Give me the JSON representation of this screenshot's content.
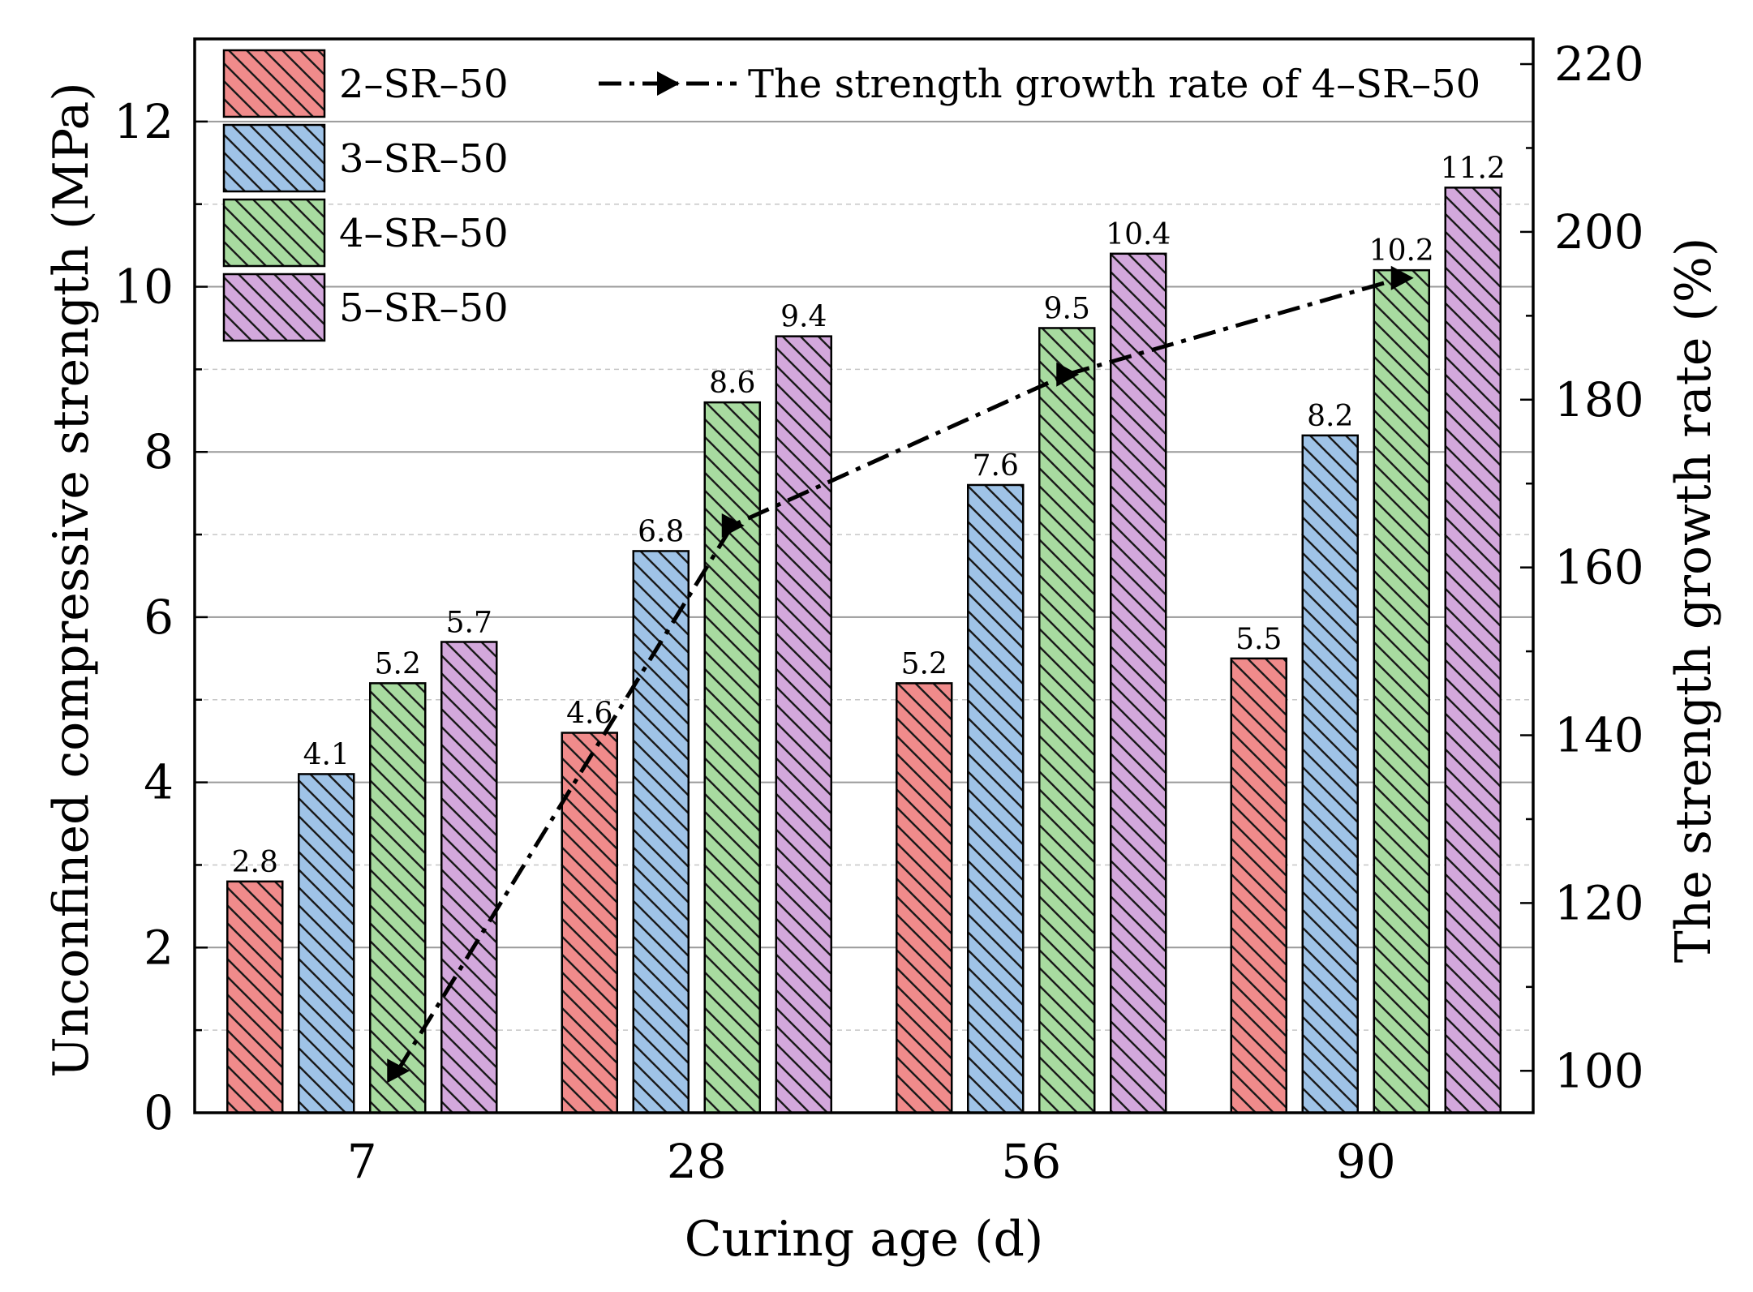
{
  "chart_data": {
    "type": "bar",
    "categories": [
      "7",
      "28",
      "56",
      "90"
    ],
    "xlabel": "Curing age (d)",
    "ylabel": "Unconfined compressive strength (MPa)",
    "y2label": "The strength growth rate (%)",
    "ylim": [
      0,
      13
    ],
    "y2lim": [
      95,
      223
    ],
    "yticks": [
      "0",
      "2",
      "4",
      "6",
      "8",
      "10",
      "12"
    ],
    "y2ticks": [
      "100",
      "120",
      "140",
      "160",
      "180",
      "200",
      "220"
    ],
    "grid": true,
    "legend_position": "top-left",
    "series": [
      {
        "name": "2–SR–50",
        "color": "#f08b8b",
        "values": [
          2.8,
          4.6,
          5.2,
          5.5
        ],
        "labels": [
          "2.8",
          "4.6",
          "5.2",
          "5.5"
        ]
      },
      {
        "name": "3–SR–50",
        "color": "#9fc3e7",
        "values": [
          4.1,
          6.8,
          7.6,
          8.2
        ],
        "labels": [
          "4.1",
          "6.8",
          "7.6",
          "8.2"
        ]
      },
      {
        "name": "4–SR–50",
        "color": "#a8dba0",
        "values": [
          5.2,
          8.6,
          9.5,
          10.2
        ],
        "labels": [
          "5.2",
          "8.6",
          "9.5",
          "10.2"
        ]
      },
      {
        "name": "5–SR–50",
        "color": "#d3a8dc",
        "values": [
          5.7,
          9.4,
          10.4,
          11.2
        ],
        "labels": [
          "5.7",
          "9.4",
          "10.4",
          "11.2"
        ]
      }
    ],
    "line_series": {
      "name": "The strength growth rate of 4–SR–50",
      "axis": "right",
      "style": "dash-dot",
      "marker": "right-triangle",
      "color": "#000000",
      "values": [
        100,
        165,
        183,
        194.5
      ]
    }
  }
}
